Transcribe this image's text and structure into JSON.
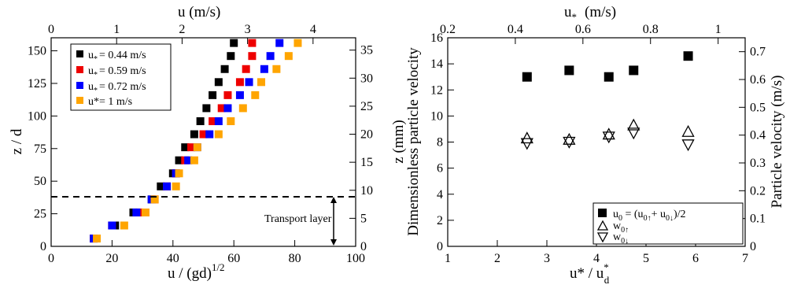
{
  "chart_data": [
    {
      "type": "scatter",
      "xlabel": "u / (gd)^1/2",
      "ylabel": "z / d",
      "top_xlabel": "u (m/s)",
      "xlim": [
        0,
        100
      ],
      "ylim": [
        0,
        160
      ],
      "top_xlim": [
        0,
        4.651
      ],
      "right_ylim": [
        0,
        37.2
      ],
      "x_ticks": [
        "0",
        "20",
        "40",
        "60",
        "80",
        "100"
      ],
      "y_ticks": [
        "0",
        "25",
        "50",
        "75",
        "100",
        "125",
        "150"
      ],
      "top_ticks": [
        "0",
        "1",
        "2",
        "3",
        "4"
      ],
      "right_ticks": [
        "0",
        "5",
        "10",
        "15",
        "20",
        "25",
        "30",
        "35"
      ],
      "series": [
        {
          "name": "u* = 0.44 m/s",
          "color": "#000000",
          "points": [
            [
              14,
              6
            ],
            [
              21,
              16
            ],
            [
              27,
              26
            ],
            [
              33,
              36
            ],
            [
              36,
              46
            ],
            [
              40,
              56
            ],
            [
              42,
              66
            ],
            [
              44,
              76
            ],
            [
              47,
              86
            ],
            [
              49,
              96
            ],
            [
              51,
              106
            ],
            [
              53,
              116
            ],
            [
              55,
              126
            ],
            [
              57,
              136
            ],
            [
              59,
              146
            ],
            [
              60,
              156
            ]
          ]
        },
        {
          "name": "u* = 0.59 m/s",
          "color": "#ee0000",
          "points": [
            [
              14,
              6
            ],
            [
              20,
              16
            ],
            [
              29,
              26
            ],
            [
              34,
              36
            ],
            [
              38,
              46
            ],
            [
              41,
              56
            ],
            [
              44,
              66
            ],
            [
              46,
              76
            ],
            [
              50,
              86
            ],
            [
              53,
              96
            ],
            [
              56,
              106
            ],
            [
              58,
              116
            ],
            [
              62,
              126
            ],
            [
              64,
              136
            ],
            [
              66,
              146
            ],
            [
              66,
              156
            ]
          ]
        },
        {
          "name": "u* = 0.72 m/s",
          "color": "#0000ff",
          "points": [
            [
              14,
              6
            ],
            [
              20,
              16
            ],
            [
              28,
              26
            ],
            [
              33,
              36
            ],
            [
              38,
              46
            ],
            [
              41,
              56
            ],
            [
              45,
              66
            ],
            [
              48,
              76
            ],
            [
              52,
              86
            ],
            [
              55,
              96
            ],
            [
              58,
              106
            ],
            [
              62,
              116
            ],
            [
              65,
              126
            ],
            [
              70,
              136
            ],
            [
              72,
              146
            ],
            [
              75,
              156
            ]
          ]
        },
        {
          "name": "u*= 1 m/s",
          "color": "#ffa500",
          "points": [
            [
              15,
              6
            ],
            [
              24,
              16
            ],
            [
              31,
              26
            ],
            [
              34,
              36
            ],
            [
              41,
              46
            ],
            [
              42,
              56
            ],
            [
              47,
              66
            ],
            [
              48,
              76
            ],
            [
              55,
              86
            ],
            [
              59,
              96
            ],
            [
              63,
              106
            ],
            [
              67,
              116
            ],
            [
              69,
              126
            ],
            [
              74,
              136
            ],
            [
              78,
              146
            ],
            [
              81,
              156
            ]
          ]
        }
      ],
      "annotations": {
        "threshold_z": 38,
        "label": "Transport layer"
      }
    },
    {
      "type": "scatter",
      "xlabel": "u* / u*_d",
      "ylabel": "Dimensionless particle velocity",
      "top_xlabel": "u* (m/s)",
      "right_ylabel": "Particle velocity (m/s)",
      "xlim": [
        1,
        7
      ],
      "ylim": [
        0,
        16
      ],
      "top_xlim": [
        0.2,
        1.08
      ],
      "right_ylim": [
        0,
        0.75
      ],
      "x_ticks": [
        "1",
        "2",
        "3",
        "4",
        "5",
        "6",
        "7"
      ],
      "y_ticks": [
        "0",
        "2",
        "4",
        "6",
        "8",
        "10",
        "12",
        "14",
        "16"
      ],
      "top_ticks": [
        "0.2",
        "0.4",
        "0.6",
        "0.8",
        "1"
      ],
      "right_ticks": [
        "0",
        "0.1",
        "0.2",
        "0.3",
        "0.4",
        "0.5",
        "0.6",
        "0.7"
      ],
      "series": [
        {
          "name": "u0 = (u0↑ + u0↓)/2",
          "marker": "square",
          "points": [
            [
              2.6,
              13.0
            ],
            [
              3.45,
              13.5
            ],
            [
              4.25,
              13.0
            ],
            [
              4.75,
              13.5
            ],
            [
              5.85,
              14.6
            ]
          ]
        },
        {
          "name": "w0↑",
          "marker": "triangle-up",
          "points": [
            [
              2.6,
              8.3
            ],
            [
              3.45,
              8.2
            ],
            [
              4.25,
              8.6
            ],
            [
              4.75,
              9.3
            ],
            [
              5.85,
              8.8
            ]
          ]
        },
        {
          "name": "w0↓",
          "marker": "triangle-down",
          "points": [
            [
              2.6,
              7.9
            ],
            [
              3.45,
              8.0
            ],
            [
              4.25,
              8.4
            ],
            [
              4.75,
              8.7
            ],
            [
              5.85,
              7.8
            ]
          ]
        }
      ]
    }
  ],
  "labels": {
    "left_xlabel_main": "u / (gd)",
    "left_xlabel_sup": "1/2",
    "left_ylabel": "z / d",
    "left_top_label": "u (m/s)",
    "right_xlabel_a": "u* / u",
    "right_xlabel_sup": "*",
    "right_xlabel_sub": "d",
    "right_ylabel": "Dimensionless particle velocity",
    "right_top_u": "u",
    "right_top_sub": "*",
    "right_top_unit": "(m/s)",
    "right_right_ylabel": "Particle velocity (m/s)",
    "mid_ylabel": "z  (mm)",
    "transport": "Transport layer",
    "leg1_u": "u",
    "leg1_sub": "*",
    "leg1_rest": "= 0.44 m/s",
    "leg2_u": "u",
    "leg2_sub": "*",
    "leg2_rest": "= 0.59 m/s",
    "leg3_u": "u",
    "leg3_sub": "*",
    "leg3_rest": "= 0.72 m/s",
    "leg4": "u*= 1 m/s",
    "rleg1_a": "u",
    "rleg1_sub": "0",
    "rleg1_b": " = (u",
    "rleg1_c": "+ u",
    "rleg1_d": ")/2",
    "rleg2_a": "w",
    "rleg2_sub": "0",
    "rleg3_a": "w",
    "rleg3_sub": "0"
  }
}
